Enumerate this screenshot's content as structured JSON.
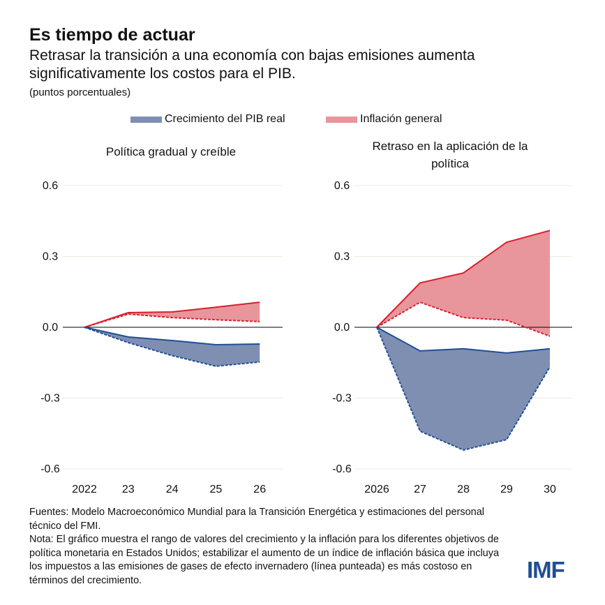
{
  "title": "Es tiempo de actuar",
  "subtitle": "Retrasar la transición a una economía con bajas emisiones aumenta significativamente los costos para el PIB.",
  "unit": "(puntos porcentuales)",
  "legend": [
    {
      "label": "Crecimiento del PIB real",
      "color": "#7f8fb2"
    },
    {
      "label": "Inflación general",
      "color": "#e8959c"
    }
  ],
  "colors": {
    "blue_line": "#1f4e96",
    "red_line": "#d8202c",
    "blue_fill": "#7f8fb2",
    "red_fill": "#e8959c"
  },
  "notes": {
    "sources": "Fuentes: Modelo Macroeconómico Mundial para la Transición Energética y estimaciones del personal técnico del FMI.",
    "note": "Nota: El gráfico muestra el rango de valores del crecimiento y la inflación para los diferentes objetivos de política monetaria en Estados Unidos; estabilizar el aumento de un índice de inflación básica que incluya los impuestos a las emisiones de gases de efecto invernadero (línea punteada) es más costoso en términos del crecimiento."
  },
  "logo": "IMF",
  "chart_data": [
    {
      "type": "area",
      "title": "Política gradual y creíble",
      "categories": [
        "2022",
        "23",
        "24",
        "25",
        "26"
      ],
      "ylim": [
        -0.6,
        0.6
      ],
      "yticks": [
        "0.6",
        "0.3",
        "0.0",
        "-0.3",
        "-0.6"
      ],
      "grid": true,
      "series": {
        "gdp_solid": [
          0,
          -0.041,
          -0.056,
          -0.074,
          -0.071
        ],
        "gdp_dashed": [
          0,
          -0.065,
          -0.12,
          -0.165,
          -0.147
        ],
        "infl_solid": [
          0,
          0.062,
          0.065,
          0.085,
          0.106
        ],
        "infl_dashed": [
          0,
          0.056,
          0.041,
          0.032,
          0.024
        ]
      }
    },
    {
      "type": "area",
      "title": "Retraso  en la aplicación de la política",
      "categories": [
        "2026",
        "27",
        "28",
        "29",
        "30"
      ],
      "ylim": [
        -0.6,
        0.6
      ],
      "yticks": [
        "0.6",
        "0.3",
        "0.0",
        "-0.3",
        "-0.6"
      ],
      "grid": true,
      "series": {
        "gdp_solid": [
          0,
          -0.1,
          -0.091,
          -0.109,
          -0.091
        ],
        "gdp_dashed": [
          0,
          -0.44,
          -0.52,
          -0.476,
          -0.168
        ],
        "infl_solid": [
          0,
          0.188,
          0.23,
          0.36,
          0.41
        ],
        "infl_dashed": [
          0,
          0.106,
          0.041,
          0.03,
          -0.038
        ]
      }
    }
  ]
}
